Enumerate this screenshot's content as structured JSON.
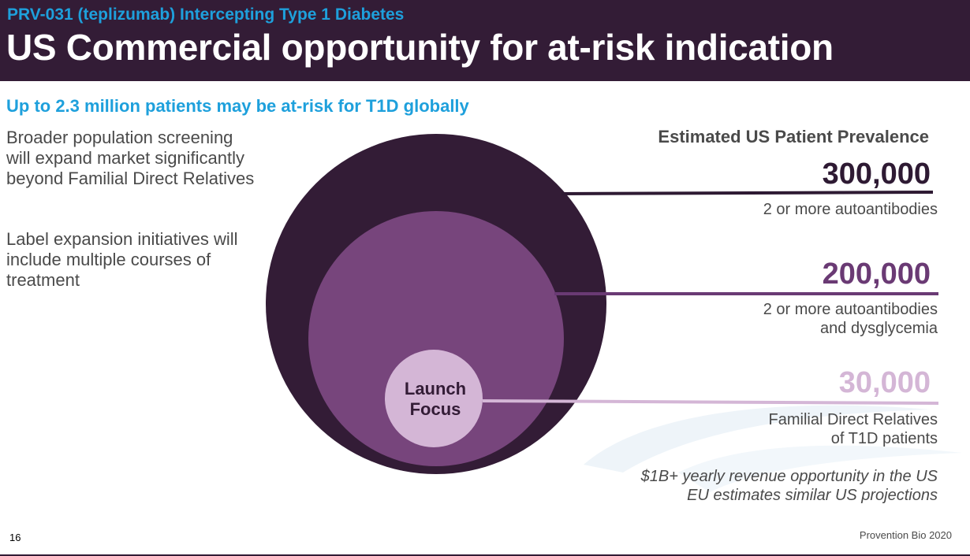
{
  "header": {
    "kicker": "PRV-031 (teplizumab) Intercepting Type 1 Diabetes",
    "title": "US Commercial opportunity for at-risk indication"
  },
  "subtitle": "Up to 2.3 million patients may be at-risk for T1D globally",
  "left_text": {
    "para1": "Broader population screening will expand market significantly beyond Familial Direct Relatives",
    "para2": "Label expansion initiatives will include multiple courses of treatment"
  },
  "prevalence": {
    "heading": "Estimated US Patient Prevalence",
    "tiers": [
      {
        "value": "300,000",
        "line1": "2 or more autoantibodies",
        "line2": "",
        "color": "#2e1a33"
      },
      {
        "value": "200,000",
        "line1": "2 or more autoantibodies",
        "line2": "and dysglycemia",
        "color": "#6a3a74"
      },
      {
        "value": "30,000",
        "line1": "Familial Direct Relatives",
        "line2": "of T1D patients",
        "color": "#d4b6d6"
      }
    ]
  },
  "launch_focus": {
    "line1": "Launch",
    "line2": "Focus"
  },
  "revenue": {
    "line1": "$1B+ yearly revenue opportunity in the US",
    "line2": "EU estimates similar US projections"
  },
  "footer": {
    "page_number": "16",
    "company": "Provention Bio 2020"
  },
  "colors": {
    "header_bg": "#331c36",
    "accent_blue": "#1ea0dc",
    "outer_circle": "#331c36",
    "middle_circle": "#77457c",
    "inner_circle": "#d4b6d6"
  }
}
